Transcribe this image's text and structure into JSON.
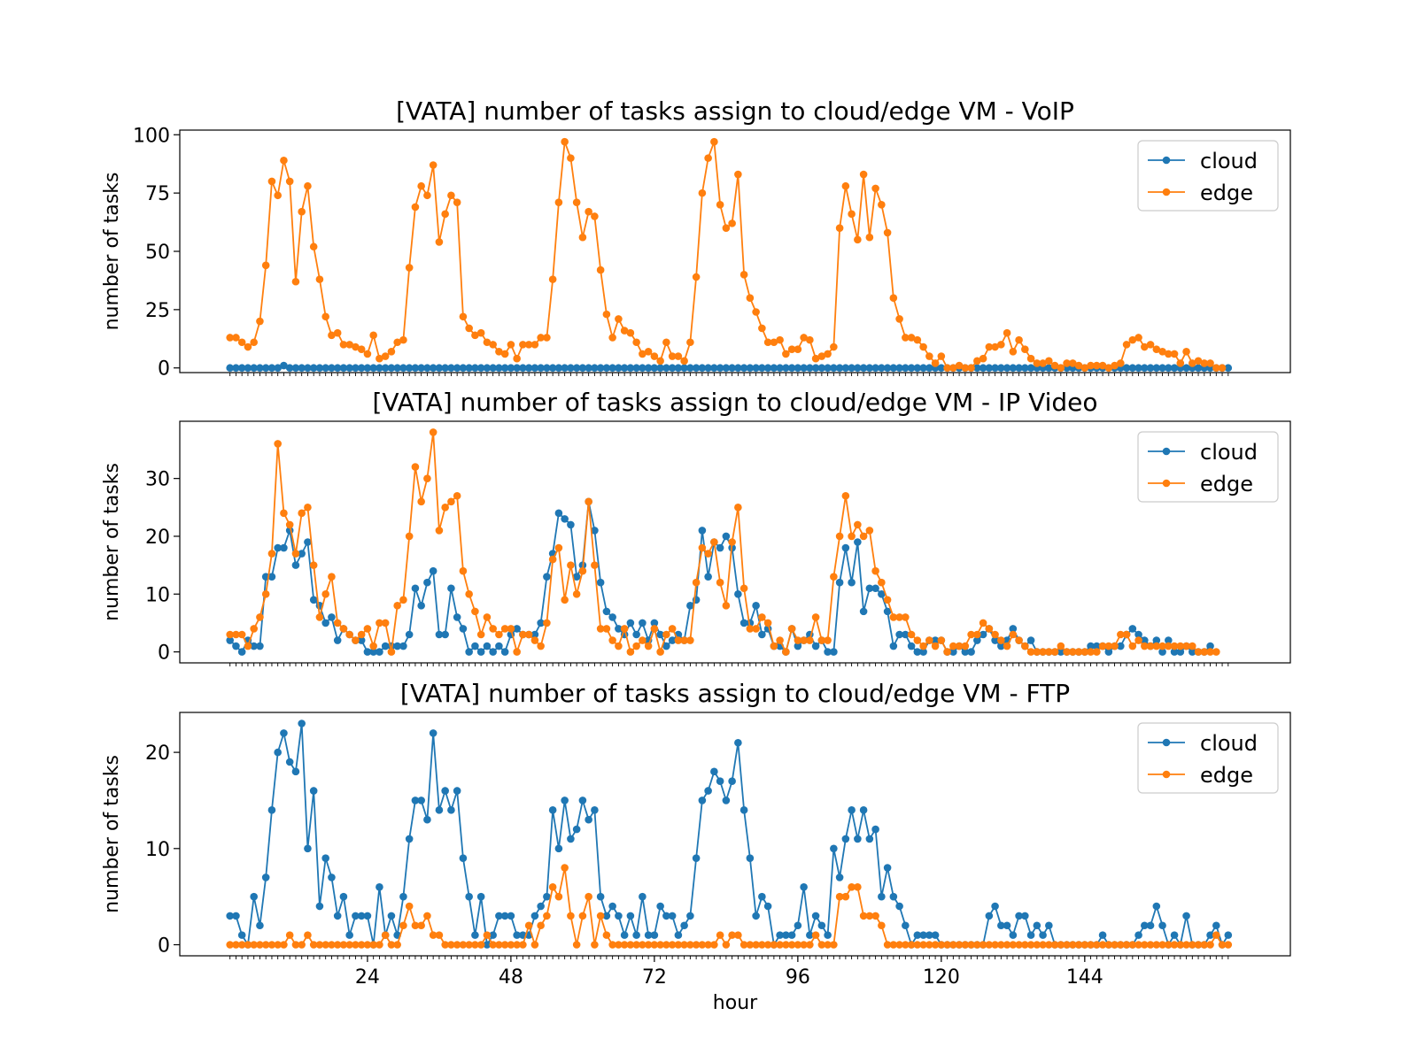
{
  "colors": {
    "cloud": "#1f77b4",
    "edge": "#ff7f0e"
  },
  "chart_data": [
    {
      "type": "line",
      "title": "[VATA] number of tasks assign to cloud/edge VM - VoIP",
      "xlabel": "",
      "ylabel": "number of tasks",
      "ylim": [
        -2,
        102
      ],
      "yticks": [
        0,
        25,
        50,
        75,
        100
      ],
      "ytick_labels": [
        "0",
        "25",
        "50",
        "75",
        "100"
      ],
      "legend": {
        "position": "upper-right",
        "entries": [
          "cloud",
          "edge"
        ]
      },
      "x_start": 1,
      "series": [
        {
          "name": "cloud",
          "values": [
            0,
            0,
            0,
            0,
            0,
            0,
            0,
            0,
            0,
            1,
            0,
            0,
            0,
            0,
            0,
            0,
            0,
            0,
            0,
            0,
            0,
            0,
            0,
            0,
            0,
            0,
            0,
            0,
            0,
            0,
            0,
            0,
            0,
            0,
            0,
            0,
            0,
            0,
            0,
            0,
            0,
            0,
            0,
            0,
            0,
            0,
            0,
            0,
            0,
            0,
            0,
            0,
            0,
            0,
            0,
            0,
            0,
            0,
            0,
            0,
            0,
            0,
            0,
            0,
            0,
            0,
            0,
            0,
            0,
            0,
            0,
            0,
            0,
            0,
            0,
            0,
            0,
            0,
            0,
            0,
            0,
            0,
            0,
            0,
            0,
            0,
            0,
            0,
            0,
            0,
            0,
            0,
            0,
            0,
            0,
            0,
            0,
            0,
            0,
            0,
            0,
            0,
            0,
            0,
            0,
            0,
            0,
            0,
            0,
            0,
            0,
            0,
            0,
            0,
            0,
            0,
            0,
            0,
            0,
            0,
            0,
            0,
            0,
            0,
            0,
            0,
            0,
            0,
            0,
            0,
            0,
            0,
            0,
            0,
            0,
            0,
            0,
            0,
            0,
            0,
            0,
            0,
            0,
            0,
            0,
            0,
            0,
            0,
            0,
            0,
            0,
            0,
            0,
            0,
            0,
            0,
            0,
            0,
            0,
            0,
            0,
            0,
            0,
            0,
            0,
            0,
            0,
            0
          ]
        },
        {
          "name": "edge",
          "values": [
            13,
            13,
            11,
            9,
            11,
            20,
            44,
            80,
            74,
            89,
            80,
            37,
            67,
            78,
            52,
            38,
            22,
            14,
            15,
            10,
            10,
            9,
            8,
            6,
            14,
            4,
            5,
            7,
            11,
            12,
            43,
            69,
            78,
            74,
            87,
            54,
            66,
            74,
            71,
            22,
            17,
            14,
            15,
            11,
            10,
            7,
            6,
            10,
            4,
            10,
            10,
            10,
            13,
            13,
            38,
            71,
            97,
            90,
            71,
            56,
            67,
            65,
            42,
            23,
            13,
            21,
            16,
            15,
            11,
            6,
            7,
            5,
            3,
            11,
            5,
            5,
            3,
            11,
            39,
            75,
            90,
            97,
            70,
            60,
            62,
            83,
            40,
            30,
            24,
            17,
            11,
            11,
            12,
            6,
            8,
            8,
            13,
            12,
            4,
            5,
            6,
            9,
            60,
            78,
            66,
            55,
            83,
            56,
            77,
            70,
            58,
            30,
            21,
            13,
            13,
            12,
            9,
            5,
            2,
            5,
            0,
            0,
            1,
            0,
            0,
            3,
            4,
            9,
            9,
            10,
            15,
            7,
            12,
            8,
            4,
            2,
            2,
            3,
            1,
            0,
            2,
            2,
            1,
            0,
            1,
            1,
            1,
            0,
            1,
            2,
            10,
            12,
            13,
            9,
            10,
            8,
            7,
            6,
            6,
            2,
            7,
            2,
            3,
            2,
            2,
            0,
            0
          ]
        }
      ]
    },
    {
      "type": "line",
      "title": "[VATA] number of tasks assign to cloud/edge VM - IP Video",
      "xlabel": "",
      "ylabel": "number of tasks",
      "ylim": [
        -1.9,
        39.9
      ],
      "yticks": [
        0,
        10,
        20,
        30
      ],
      "ytick_labels": [
        "0",
        "10",
        "20",
        "30"
      ],
      "legend": {
        "position": "upper-right",
        "entries": [
          "cloud",
          "edge"
        ]
      },
      "x_start": 1,
      "series": [
        {
          "name": "cloud",
          "values": [
            2,
            1,
            0,
            2,
            1,
            1,
            13,
            13,
            18,
            18,
            21,
            15,
            17,
            19,
            9,
            8,
            5,
            6,
            2,
            4,
            3,
            2,
            2,
            0,
            0,
            0,
            1,
            1,
            1,
            1,
            3,
            11,
            8,
            12,
            14,
            3,
            3,
            11,
            6,
            4,
            0,
            1,
            0,
            1,
            0,
            1,
            0,
            3,
            4,
            3,
            3,
            3,
            5,
            13,
            17,
            24,
            23,
            22,
            13,
            15,
            26,
            21,
            12,
            7,
            6,
            4,
            3,
            5,
            3,
            5,
            2,
            5,
            3,
            1,
            2,
            3,
            2,
            8,
            9,
            21,
            13,
            19,
            18,
            20,
            18,
            10,
            5,
            5,
            8,
            3,
            4,
            1,
            1,
            0,
            4,
            1,
            2,
            3,
            1,
            2,
            0,
            0,
            12,
            18,
            12,
            19,
            7,
            11,
            11,
            10,
            7,
            1,
            3,
            3,
            1,
            0,
            0,
            2,
            2,
            2,
            0,
            0,
            1,
            0,
            0,
            2,
            3,
            4,
            2,
            1,
            2,
            4,
            2,
            1,
            2,
            0,
            0,
            0,
            0,
            0,
            0,
            0,
            0,
            0,
            1,
            1,
            1,
            0,
            1,
            1,
            3,
            4,
            3,
            2,
            1,
            2,
            0,
            2,
            0,
            0,
            1,
            0,
            0,
            0,
            1
          ]
        },
        {
          "name": "edge",
          "values": [
            3,
            3,
            3,
            1,
            4,
            6,
            10,
            17,
            36,
            24,
            22,
            17,
            24,
            25,
            15,
            6,
            10,
            13,
            5,
            4,
            3,
            2,
            3,
            4,
            1,
            5,
            5,
            0,
            8,
            9,
            20,
            32,
            26,
            30,
            38,
            21,
            25,
            26,
            27,
            14,
            10,
            7,
            3,
            6,
            4,
            3,
            4,
            4,
            0,
            3,
            3,
            2,
            1,
            5,
            16,
            18,
            9,
            15,
            10,
            14,
            26,
            15,
            4,
            4,
            2,
            1,
            4,
            0,
            1,
            2,
            1,
            4,
            0,
            3,
            4,
            2,
            2,
            2,
            12,
            18,
            17,
            19,
            12,
            8,
            19,
            25,
            11,
            4,
            4,
            6,
            5,
            1,
            2,
            0,
            4,
            2,
            2,
            2,
            6,
            2,
            2,
            13,
            20,
            27,
            20,
            22,
            20,
            21,
            14,
            12,
            9,
            6,
            6,
            6,
            3,
            2,
            1,
            2,
            1,
            2,
            0,
            1,
            1,
            1,
            3,
            3,
            5,
            4,
            3,
            2,
            1,
            3,
            2,
            1,
            0,
            0,
            0,
            0,
            0,
            1,
            0,
            0,
            0,
            0,
            0,
            0,
            1,
            1,
            1,
            3,
            3,
            1,
            2,
            1,
            1,
            1,
            1,
            1,
            1,
            1,
            1,
            1,
            0,
            0,
            0,
            0
          ]
        }
      ]
    },
    {
      "type": "line",
      "title": "[VATA] number of tasks assign to cloud/edge VM - FTP",
      "xlabel": "hour",
      "ylabel": "number of tasks",
      "ylim": [
        -1.15,
        24.15
      ],
      "yticks": [
        0,
        10,
        20
      ],
      "ytick_labels": [
        "0",
        "10",
        "20"
      ],
      "xticks": [
        24,
        48,
        72,
        96,
        120,
        144
      ],
      "xtick_labels": [
        "24",
        "48",
        "72",
        "96",
        "120",
        "144"
      ],
      "legend": {
        "position": "upper-right",
        "entries": [
          "cloud",
          "edge"
        ]
      },
      "x_start": 1,
      "series": [
        {
          "name": "cloud",
          "values": [
            3,
            3,
            1,
            0,
            5,
            2,
            7,
            14,
            20,
            22,
            19,
            18,
            23,
            10,
            16,
            4,
            9,
            7,
            3,
            5,
            1,
            3,
            3,
            3,
            0,
            6,
            1,
            3,
            1,
            5,
            11,
            15,
            15,
            13,
            22,
            14,
            16,
            14,
            16,
            9,
            5,
            1,
            5,
            0,
            1,
            3,
            3,
            3,
            1,
            1,
            1,
            3,
            4,
            5,
            14,
            10,
            15,
            11,
            12,
            15,
            13,
            14,
            5,
            3,
            4,
            3,
            1,
            3,
            1,
            5,
            1,
            1,
            4,
            3,
            3,
            1,
            2,
            3,
            9,
            15,
            16,
            18,
            17,
            15,
            17,
            21,
            14,
            9,
            3,
            5,
            4,
            0,
            1,
            1,
            1,
            2,
            6,
            1,
            3,
            2,
            1,
            10,
            7,
            11,
            14,
            11,
            14,
            11,
            12,
            5,
            8,
            5,
            4,
            2,
            0,
            1,
            1,
            1,
            1,
            0,
            0,
            0,
            0,
            0,
            0,
            0,
            0,
            3,
            4,
            2,
            2,
            1,
            3,
            3,
            1,
            2,
            1,
            2,
            0,
            0,
            0,
            0,
            0,
            0,
            0,
            0,
            1,
            0,
            0,
            0,
            0,
            0,
            1,
            2,
            2,
            4,
            2,
            0,
            1,
            0,
            3,
            0,
            0,
            0,
            1,
            2,
            0,
            1
          ]
        },
        {
          "name": "edge",
          "values": [
            0,
            0,
            0,
            0,
            0,
            0,
            0,
            0,
            0,
            0,
            1,
            0,
            0,
            1,
            0,
            0,
            0,
            0,
            0,
            0,
            0,
            0,
            0,
            0,
            0,
            0,
            1,
            0,
            0,
            2,
            4,
            2,
            2,
            3,
            1,
            1,
            0,
            0,
            0,
            0,
            0,
            0,
            0,
            1,
            0,
            0,
            0,
            0,
            0,
            0,
            2,
            0,
            2,
            3,
            6,
            5,
            8,
            3,
            0,
            3,
            5,
            0,
            3,
            1,
            0,
            0,
            0,
            0,
            0,
            0,
            0,
            0,
            0,
            0,
            0,
            0,
            0,
            0,
            0,
            0,
            0,
            0,
            1,
            0,
            1,
            1,
            0,
            0,
            0,
            0,
            0,
            0,
            0,
            0,
            0,
            0,
            0,
            0,
            1,
            0,
            0,
            0,
            5,
            5,
            6,
            6,
            3,
            3,
            3,
            2,
            0,
            0,
            0,
            0,
            0,
            0,
            0,
            0,
            0,
            0,
            0,
            0,
            0,
            0,
            0,
            0,
            0,
            0,
            0,
            0,
            0,
            0,
            0,
            0,
            0,
            0,
            0,
            0,
            0,
            0,
            0,
            0,
            0,
            0,
            0,
            0,
            0,
            0,
            0,
            0,
            0,
            0,
            0,
            0,
            0,
            0,
            0,
            0,
            0,
            0,
            0,
            0,
            0,
            0,
            0,
            1,
            0,
            0
          ]
        }
      ]
    }
  ]
}
